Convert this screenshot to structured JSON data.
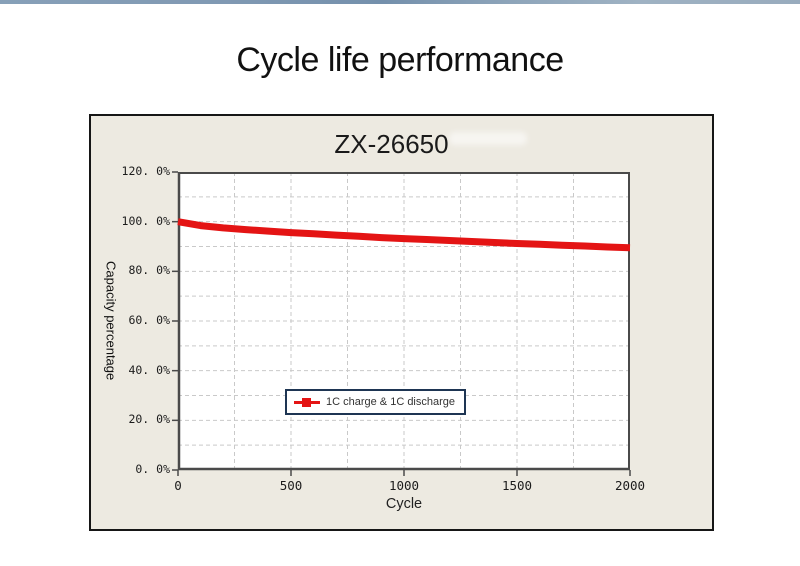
{
  "page": {
    "title": "Cycle life performance"
  },
  "chart": {
    "title": "ZX-26650",
    "xlabel": "Cycle",
    "ylabel": "Capacity percentage",
    "legend_label": "1C charge & 1C discharge"
  },
  "chart_data": {
    "type": "line",
    "title": "ZX-26650",
    "xlabel": "Cycle",
    "ylabel": "Capacity percentage",
    "xlim": [
      0,
      2000
    ],
    "ylim": [
      0,
      120
    ],
    "x_ticks": [
      0,
      500,
      1000,
      1500,
      2000
    ],
    "x_tick_labels": [
      "0",
      "500",
      "1000",
      "1500",
      "2000"
    ],
    "y_ticks": [
      0,
      20,
      40,
      60,
      80,
      100,
      120
    ],
    "y_tick_labels": [
      "0. 0%",
      "20. 0%",
      "40. 0%",
      "60. 0%",
      "80. 0%",
      "100. 0%",
      "120. 0%"
    ],
    "x_minor_grid_step": 250,
    "y_minor_grid_step": 10,
    "grid_style": "dashed",
    "legend_position": "inside-center-left",
    "series": [
      {
        "name": "1C charge & 1C discharge",
        "color": "#e41414",
        "marker": "square",
        "x": [
          0,
          100,
          200,
          300,
          400,
          500,
          600,
          700,
          800,
          900,
          1000,
          1100,
          1200,
          1300,
          1400,
          1500,
          1600,
          1700,
          1800,
          1900,
          2000
        ],
        "y": [
          100.0,
          98.4,
          97.5,
          96.8,
          96.2,
          95.6,
          95.1,
          94.6,
          94.1,
          93.6,
          93.2,
          92.8,
          92.4,
          92.0,
          91.6,
          91.2,
          90.9,
          90.5,
          90.2,
          89.8,
          89.5
        ]
      }
    ]
  },
  "colors": {
    "accent_red": "#e41414",
    "panel_bg": "#edeae1",
    "panel_border": "#161616",
    "plot_frame": "#4a4a4a",
    "grid_line": "#c9c9c9",
    "legend_border": "#1e3553",
    "legend_text": "#333333",
    "strip_left": "#87a0b8",
    "strip_mid": "#7490ac",
    "strip_right": "#9fb2c3"
  }
}
